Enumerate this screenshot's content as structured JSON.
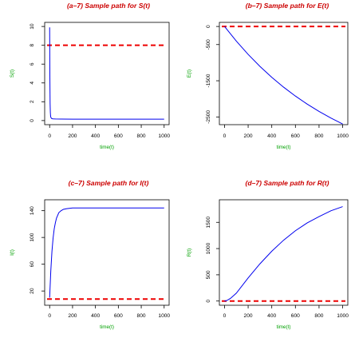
{
  "chart_data": [
    {
      "type": "line",
      "title": "(a–7) Sample path for S(t)",
      "xlabel": "time(t)",
      "ylabel": "S(t)",
      "xlim": [
        0,
        1000
      ],
      "ylim": [
        0,
        10
      ],
      "xticks": [
        "0",
        "200",
        "400",
        "600",
        "800",
        "1000"
      ],
      "yticks": [
        "0",
        "2",
        "4",
        "6",
        "8",
        "10"
      ],
      "grid": false,
      "colors": {
        "path": "#0000ee",
        "equilibrium": "#ee0000"
      },
      "reference_line": {
        "y": 8,
        "style": "dashed"
      },
      "series": [
        {
          "x": [
            0,
            2,
            4,
            6,
            8,
            10,
            15,
            20,
            30,
            50,
            100,
            200,
            400,
            600,
            800,
            1000
          ],
          "y": [
            9.9,
            4.5,
            1.8,
            0.9,
            0.5,
            0.35,
            0.25,
            0.2,
            0.18,
            0.17,
            0.16,
            0.15,
            0.15,
            0.15,
            0.15,
            0.15
          ]
        }
      ]
    },
    {
      "type": "line",
      "title": "(b–7) Sample path for E(t)",
      "xlabel": "time(t)",
      "ylabel": "E(t)",
      "xlim": [
        0,
        1000
      ],
      "ylim": [
        -2600,
        0
      ],
      "xticks": [
        "0",
        "200",
        "400",
        "600",
        "800",
        "1000"
      ],
      "yticks": [
        "0",
        "-500",
        "-1500",
        "-2500"
      ],
      "grid": false,
      "colors": {
        "path": "#0000ee",
        "equilibrium": "#ee0000"
      },
      "reference_line": {
        "y": 0,
        "style": "dashed"
      },
      "series": [
        {
          "x": [
            0,
            100,
            200,
            300,
            400,
            500,
            600,
            700,
            800,
            900,
            1000
          ],
          "y": [
            0,
            -405,
            -772,
            -1104,
            -1405,
            -1677,
            -1923,
            -2146,
            -2348,
            -2530,
            -2695
          ]
        }
      ]
    },
    {
      "type": "line",
      "title": "(c–7) Sample path for I(t)",
      "xlabel": "time(t)",
      "ylabel": "I(t)",
      "xlim": [
        0,
        1000
      ],
      "ylim": [
        5,
        150
      ],
      "xticks": [
        "0",
        "200",
        "400",
        "600",
        "800",
        "1000"
      ],
      "yticks": [
        "20",
        "60",
        "100",
        "140"
      ],
      "grid": false,
      "colors": {
        "path": "#0000ee",
        "equilibrium": "#ee0000"
      },
      "reference_line": {
        "y": 8,
        "style": "dashed"
      },
      "series": [
        {
          "x": [
            0,
            10,
            20,
            30,
            40,
            50,
            60,
            80,
            100,
            120,
            150,
            200,
            300,
            400,
            600,
            800,
            1000
          ],
          "y": [
            10,
            50,
            79,
            99,
            113,
            122,
            129,
            137,
            140,
            142,
            143,
            144,
            144,
            144,
            144,
            144,
            144
          ]
        }
      ]
    },
    {
      "type": "line",
      "title": "(d–7) Sample path for R(t)",
      "xlabel": "time(t)",
      "ylabel": "R(t)",
      "xlim": [
        0,
        1000
      ],
      "ylim": [
        0,
        1850
      ],
      "xticks": [
        "0",
        "200",
        "400",
        "600",
        "800",
        "1000"
      ],
      "yticks": [
        "0",
        "500",
        "1000",
        "1500"
      ],
      "grid": false,
      "colors": {
        "path": "#0000ee",
        "equilibrium": "#ee0000"
      },
      "reference_line": {
        "y": 0,
        "style": "dashed"
      },
      "series": [
        {
          "x": [
            0,
            20,
            50,
            100,
            200,
            300,
            400,
            500,
            600,
            700,
            800,
            900,
            1000
          ],
          "y": [
            0,
            10,
            50,
            150,
            440,
            710,
            950,
            1160,
            1340,
            1490,
            1610,
            1720,
            1800
          ]
        }
      ]
    }
  ]
}
